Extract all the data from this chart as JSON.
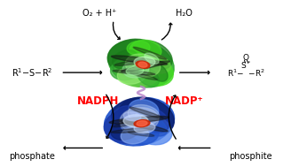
{
  "bg_color": "#ffffff",
  "fig_width": 3.19,
  "fig_height": 1.89,
  "dpi": 100,
  "label_O2H": "O₂ + H⁺",
  "label_H2O": "H₂O",
  "label_NADPH": "NADPH",
  "label_NADP": "NADP⁺",
  "label_phosphate": "phosphate",
  "label_phosphite": "phosphite",
  "text_color_black": "#000000",
  "text_color_red": "#ff0000",
  "green_dark": "#1a7a1a",
  "green_mid": "#33aa33",
  "green_light": "#66cc44",
  "green_bright": "#44dd22",
  "green_pale": "#99ee77",
  "dark_green": "#004400",
  "blue_dark": "#0a2070",
  "blue_mid": "#1a3aaa",
  "blue_bright": "#2255cc",
  "blue_light": "#5588ee",
  "blue_pale": "#88aaee",
  "blue_cyan": "#6699cc",
  "blue_sky": "#aabbdd",
  "red_cofactor": "#cc2200",
  "black_ribbon": "#111111",
  "purple_linker": "#bb88cc"
}
